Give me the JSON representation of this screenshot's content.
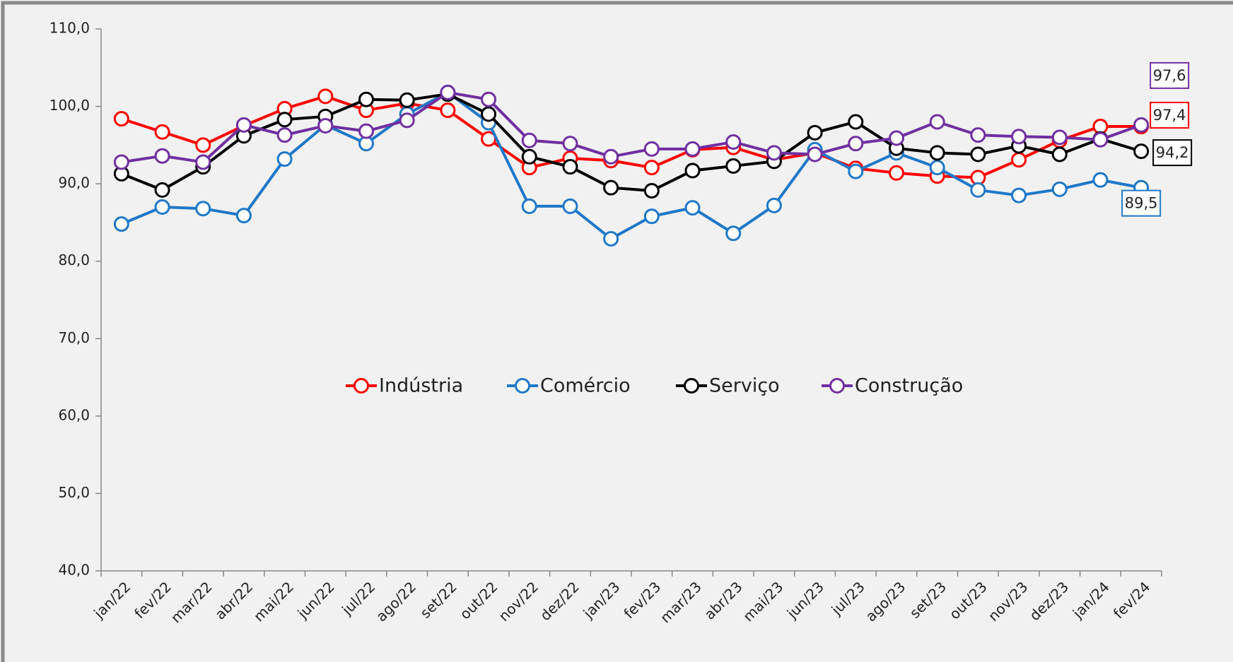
{
  "chart_data": {
    "type": "line",
    "categories": [
      "jan/22",
      "fev/22",
      "mar/22",
      "abr/22",
      "mai/22",
      "jun/22",
      "jul/22",
      "ago/22",
      "set/22",
      "out/22",
      "nov/22",
      "dez/22",
      "jan/23",
      "fev/23",
      "mar/23",
      "abr/23",
      "mai/23",
      "jun/23",
      "jul/23",
      "ago/23",
      "set/23",
      "out/23",
      "nov/23",
      "dez/23",
      "jan/24",
      "fev/24"
    ],
    "series": [
      {
        "name": "Indústria",
        "color": "#ff0000",
        "values": [
          98.4,
          96.7,
          95.0,
          97.5,
          99.7,
          101.3,
          99.5,
          100.4,
          99.5,
          95.8,
          92.1,
          93.3,
          93.0,
          92.1,
          94.4,
          94.7,
          93.1,
          94.0,
          92.0,
          91.4,
          91.0,
          90.8,
          93.1,
          95.6,
          97.4,
          97.4
        ],
        "value_labels": [
          null,
          null,
          null,
          null,
          null,
          null,
          null,
          null,
          null,
          null,
          null,
          null,
          null,
          null,
          null,
          null,
          null,
          null,
          null,
          null,
          null,
          null,
          null,
          null,
          null,
          "97,4"
        ]
      },
      {
        "name": "Comércio",
        "color": "#1f78c8",
        "values": [
          84.8,
          87.0,
          86.8,
          85.9,
          93.2,
          97.6,
          95.2,
          99.0,
          101.8,
          97.9,
          87.1,
          87.1,
          82.9,
          85.8,
          86.9,
          83.6,
          87.2,
          94.4,
          91.6,
          94.0,
          92.1,
          89.2,
          88.5,
          89.3,
          90.5,
          89.5
        ],
        "value_labels": [
          null,
          null,
          null,
          null,
          null,
          null,
          null,
          null,
          null,
          null,
          null,
          null,
          null,
          null,
          null,
          null,
          null,
          null,
          null,
          null,
          null,
          null,
          null,
          null,
          null,
          "89,5"
        ]
      },
      {
        "name": "Serviço",
        "color": "#000000",
        "values": [
          91.3,
          89.2,
          92.2,
          96.2,
          98.3,
          98.7,
          100.9,
          100.8,
          101.6,
          99.0,
          93.5,
          92.2,
          89.5,
          89.1,
          91.7,
          92.3,
          92.9,
          96.6,
          98.0,
          94.6,
          94.0,
          93.8,
          94.9,
          93.8,
          95.8,
          94.2
        ],
        "value_labels": [
          null,
          null,
          null,
          null,
          null,
          null,
          null,
          null,
          null,
          null,
          null,
          null,
          null,
          null,
          null,
          null,
          null,
          null,
          null,
          null,
          null,
          null,
          null,
          null,
          null,
          "94,2"
        ]
      },
      {
        "name": "Construção",
        "color": "#7030a0",
        "values": [
          92.8,
          93.6,
          92.8,
          97.6,
          96.3,
          97.5,
          96.8,
          98.2,
          101.8,
          100.9,
          95.6,
          95.2,
          93.5,
          94.5,
          94.5,
          95.4,
          94.0,
          93.8,
          95.2,
          95.9,
          98.0,
          96.3,
          96.1,
          96.0,
          95.7,
          97.6
        ],
        "value_labels": [
          null,
          null,
          null,
          null,
          null,
          null,
          null,
          null,
          null,
          null,
          null,
          null,
          null,
          null,
          null,
          null,
          null,
          null,
          null,
          null,
          null,
          null,
          null,
          null,
          null,
          "97,6"
        ]
      }
    ],
    "ylim": [
      40,
      110
    ],
    "yticks": [
      {
        "value": 40,
        "label": "40,0"
      },
      {
        "value": 50,
        "label": "50,0"
      },
      {
        "value": 60,
        "label": "60,0"
      },
      {
        "value": 70,
        "label": "70,0"
      },
      {
        "value": 80,
        "label": "80,0"
      },
      {
        "value": 90,
        "label": "90,0"
      },
      {
        "value": 100,
        "label": "100,0"
      },
      {
        "value": 110,
        "label": "110,0"
      }
    ],
    "legend": "center"
  }
}
